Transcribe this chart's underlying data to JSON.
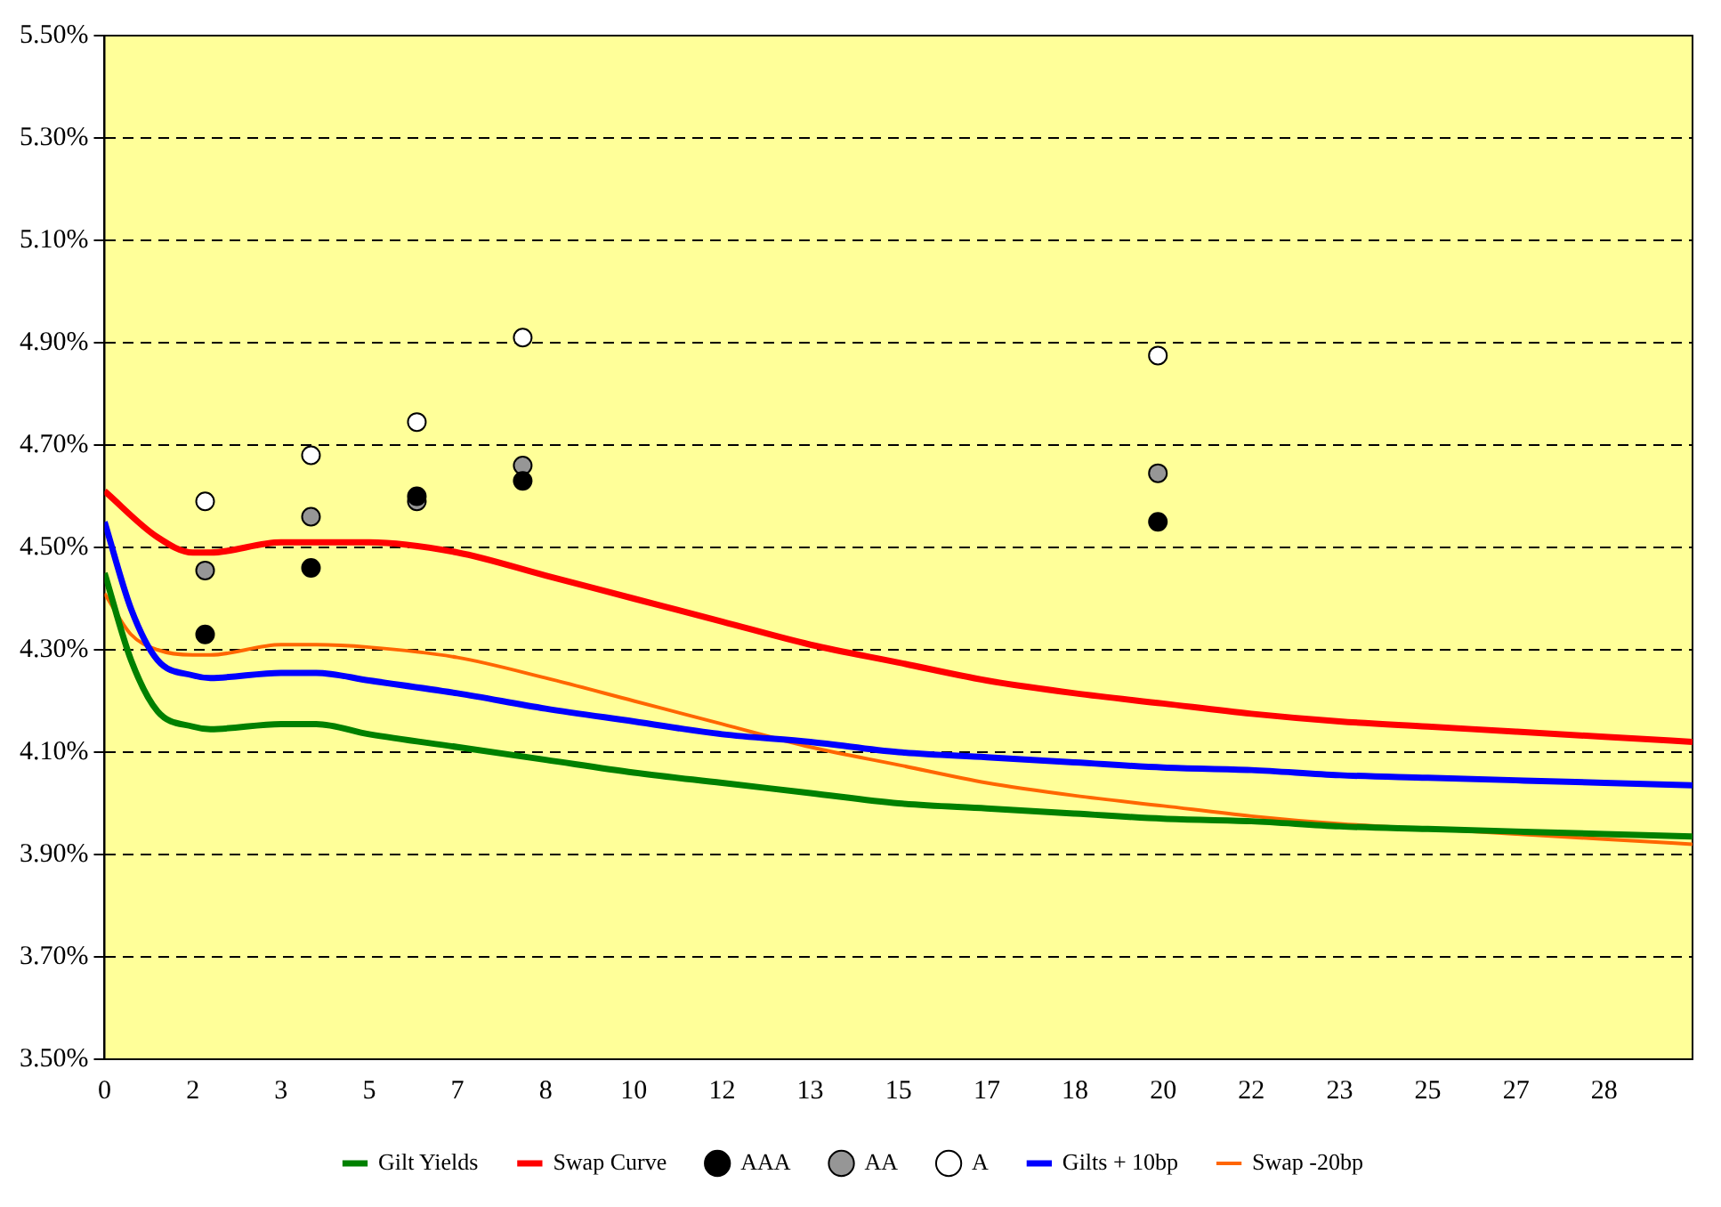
{
  "chart_data": {
    "type": "line",
    "xlim": [
      0,
      30
    ],
    "xticks": [
      {
        "value": 0,
        "label": "0"
      },
      {
        "value": 1.667,
        "label": "2"
      },
      {
        "value": 3.333,
        "label": "3"
      },
      {
        "value": 5,
        "label": "5"
      },
      {
        "value": 6.667,
        "label": "7"
      },
      {
        "value": 8.333,
        "label": "8"
      },
      {
        "value": 10,
        "label": "10"
      },
      {
        "value": 11.667,
        "label": "12"
      },
      {
        "value": 13.333,
        "label": "13"
      },
      {
        "value": 15,
        "label": "15"
      },
      {
        "value": 16.667,
        "label": "17"
      },
      {
        "value": 18.333,
        "label": "18"
      },
      {
        "value": 20,
        "label": "20"
      },
      {
        "value": 21.667,
        "label": "22"
      },
      {
        "value": 23.333,
        "label": "23"
      },
      {
        "value": 25,
        "label": "25"
      },
      {
        "value": 26.667,
        "label": "27"
      },
      {
        "value": 28.333,
        "label": "28"
      }
    ],
    "ylim": [
      3.5,
      5.5
    ],
    "yticks": [
      {
        "value": 3.5,
        "label": "3.50%"
      },
      {
        "value": 3.7,
        "label": "3.70%"
      },
      {
        "value": 3.9,
        "label": "3.90%"
      },
      {
        "value": 4.1,
        "label": "4.10%"
      },
      {
        "value": 4.3,
        "label": "4.30%"
      },
      {
        "value": 4.5,
        "label": "4.50%"
      },
      {
        "value": 4.7,
        "label": "4.70%"
      },
      {
        "value": 4.9,
        "label": "4.90%"
      },
      {
        "value": 5.1,
        "label": "5.10%"
      },
      {
        "value": 5.3,
        "label": "5.30%"
      },
      {
        "value": 5.5,
        "label": "5.50%"
      }
    ],
    "grid": "y",
    "line_style": "solid",
    "legend": "bottom",
    "series": [
      {
        "name": "Gilt Yields",
        "marker": "none",
        "color": "#008000",
        "x": [
          0,
          0.5,
          1,
          1.667,
          2,
          3.333,
          4,
          5,
          6.667,
          8.333,
          10,
          11.667,
          13.333,
          15,
          16.667,
          18.333,
          20,
          21.667,
          23.333,
          25,
          26.667,
          28.333,
          30
        ],
        "values": [
          4.45,
          4.28,
          4.18,
          4.15,
          4.145,
          4.155,
          4.155,
          4.135,
          4.11,
          4.085,
          4.06,
          4.04,
          4.02,
          4.0,
          3.99,
          3.98,
          3.97,
          3.965,
          3.955,
          3.95,
          3.945,
          3.94,
          3.935
        ]
      },
      {
        "name": "Swap Curve",
        "marker": "none",
        "color": "#ff0000",
        "x": [
          0,
          1,
          1.667,
          2,
          3.333,
          5,
          6.667,
          8.333,
          10,
          11.667,
          13.333,
          15,
          16.667,
          18.333,
          20,
          21.667,
          23.333,
          25,
          26.667,
          28.333,
          30
        ],
        "values": [
          4.61,
          4.52,
          4.49,
          4.49,
          4.51,
          4.51,
          4.49,
          4.445,
          4.4,
          4.355,
          4.31,
          4.275,
          4.24,
          4.215,
          4.195,
          4.175,
          4.16,
          4.15,
          4.14,
          4.13,
          4.12
        ]
      },
      {
        "name": "AAA",
        "type": "scatter",
        "marker": "circle",
        "color": "#000000",
        "x": [
          1.9,
          3.9,
          5.9,
          7.9,
          19.9
        ],
        "values": [
          4.33,
          4.46,
          4.6,
          4.63,
          4.55
        ]
      },
      {
        "name": "AA",
        "type": "scatter",
        "marker": "circle",
        "color": "#969696",
        "x": [
          1.9,
          3.9,
          5.9,
          7.9,
          19.9
        ],
        "values": [
          4.455,
          4.56,
          4.59,
          4.66,
          4.645
        ]
      },
      {
        "name": "A",
        "type": "scatter",
        "marker": "circle",
        "color": "#ffffff",
        "x": [
          1.9,
          3.9,
          5.9,
          7.9,
          19.9
        ],
        "values": [
          4.59,
          4.68,
          4.745,
          4.91,
          4.875
        ]
      },
      {
        "name": "Gilts + 10bp",
        "marker": "none",
        "color": "#0000ff",
        "x": [
          0,
          0.5,
          1,
          1.667,
          2,
          3.333,
          4,
          5,
          6.667,
          8.333,
          10,
          11.667,
          13.333,
          15,
          16.667,
          18.333,
          20,
          21.667,
          23.333,
          25,
          26.667,
          28.333,
          30
        ],
        "values": [
          4.55,
          4.38,
          4.28,
          4.25,
          4.245,
          4.255,
          4.255,
          4.24,
          4.215,
          4.185,
          4.16,
          4.135,
          4.12,
          4.1,
          4.09,
          4.08,
          4.07,
          4.065,
          4.055,
          4.05,
          4.045,
          4.04,
          4.035
        ]
      },
      {
        "name": "Swap -20bp",
        "marker": "none",
        "color": "#ff6600",
        "x": [
          0,
          0.5,
          1,
          1.667,
          2,
          3.333,
          4,
          5,
          6.667,
          8.333,
          10,
          11.667,
          13.333,
          15,
          16.667,
          18.333,
          20,
          21.667,
          23.333,
          25,
          26.667,
          28.333,
          30
        ],
        "values": [
          4.41,
          4.33,
          4.3,
          4.29,
          4.29,
          4.31,
          4.31,
          4.305,
          4.285,
          4.245,
          4.2,
          4.155,
          4.11,
          4.075,
          4.04,
          4.015,
          3.995,
          3.975,
          3.96,
          3.95,
          3.94,
          3.93,
          3.92
        ]
      }
    ]
  }
}
